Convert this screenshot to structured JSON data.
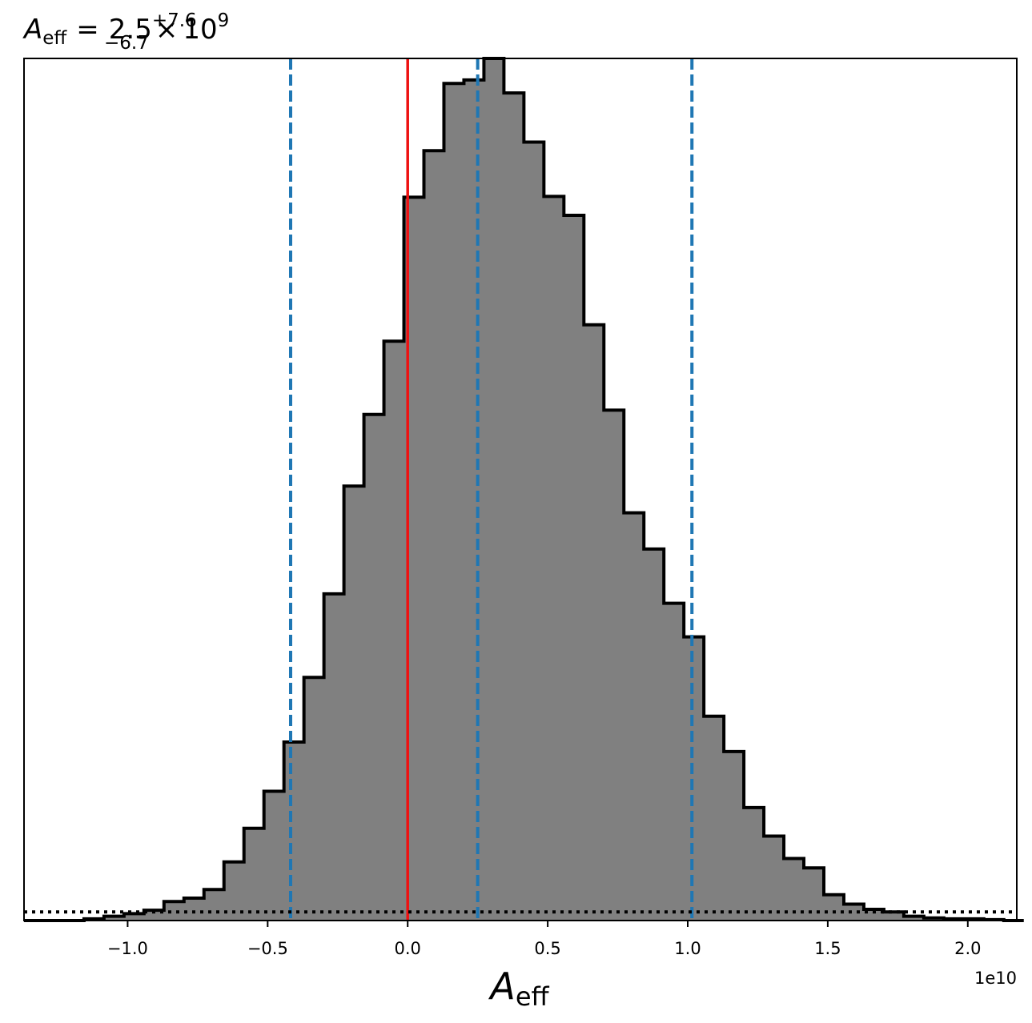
{
  "chart_data": {
    "type": "histogram",
    "title": {
      "symbol": "A",
      "symbol_sub": "eff",
      "equals": "=",
      "value": "2.5",
      "upper": "+7.6",
      "lower": "−6.7",
      "times": "×",
      "base": "10",
      "exponent": "9"
    },
    "xlabel": {
      "symbol": "A",
      "sub": "eff"
    },
    "offset_text": "1e10",
    "x_scale": 10000000000,
    "xlim": [
      -1.37,
      2.175
    ],
    "ylim": [
      0,
      1.0
    ],
    "y_axis_visible": false,
    "x_ticks": [
      {
        "value": -1.0,
        "label": "−1.0"
      },
      {
        "value": -0.5,
        "label": "−0.5"
      },
      {
        "value": 0.0,
        "label": "0.0"
      },
      {
        "value": 0.5,
        "label": "0.5"
      },
      {
        "value": 1.0,
        "label": "1.0"
      },
      {
        "value": 1.5,
        "label": "1.5"
      },
      {
        "value": 2.0,
        "label": "2.0"
      }
    ],
    "bins": {
      "edges_start": -1.37,
      "bin_width": 0.0714,
      "counts": [
        0.0,
        0.0,
        0.0,
        0.002,
        0.005,
        0.008,
        0.012,
        0.022,
        0.026,
        0.036,
        0.068,
        0.107,
        0.15,
        0.207,
        0.282,
        0.379,
        0.504,
        0.587,
        0.672,
        0.839,
        0.893,
        0.971,
        0.975,
        1.0,
        0.96,
        0.903,
        0.84,
        0.818,
        0.691,
        0.592,
        0.473,
        0.431,
        0.368,
        0.329,
        0.237,
        0.196,
        0.131,
        0.098,
        0.072,
        0.061,
        0.03,
        0.019,
        0.013,
        0.01,
        0.005,
        0.003,
        0.002,
        0.002,
        0.001,
        0.0
      ],
      "fill_color": "#808080",
      "edge_color": "#000000"
    },
    "reference_lines": [
      {
        "name": "true-value",
        "x": 0.0,
        "color": "#ee1111",
        "style": "solid"
      },
      {
        "name": "lower-quantile",
        "x": -0.418,
        "color": "#1f77b4",
        "style": "dashed"
      },
      {
        "name": "median",
        "x": 0.25,
        "color": "#1f77b4",
        "style": "dashed"
      },
      {
        "name": "upper-quantile",
        "x": 1.015,
        "color": "#1f77b4",
        "style": "dashed"
      }
    ],
    "baseline_line": {
      "y": 0.01,
      "color": "#000000",
      "style": "dotted"
    }
  }
}
